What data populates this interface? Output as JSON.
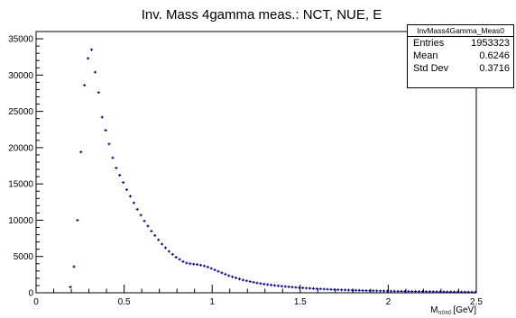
{
  "chart_data": {
    "type": "scatter",
    "title": "Inv. Mass 4gamma meas.: NCT, NUE, E",
    "xlabel": "M",
    "xlabel_sub": "π0π0",
    "xlabel_unit": "[GeV]",
    "ylabel": "",
    "xlim": [
      0,
      2.5
    ],
    "ylim": [
      0,
      36000
    ],
    "x_ticks": [
      0,
      0.5,
      1,
      1.5,
      2,
      2.5
    ],
    "x_tick_labels": [
      "0",
      "0.5",
      "1",
      "1.5",
      "2",
      "2.5"
    ],
    "y_ticks": [
      0,
      5000,
      10000,
      15000,
      20000,
      25000,
      30000,
      35000
    ],
    "y_tick_labels": [
      "0",
      "5000",
      "10000",
      "15000",
      "20000",
      "25000",
      "30000",
      "35000"
    ],
    "grid": false,
    "marker_color": "#00008b",
    "series": [
      {
        "x": [
          0.195,
          0.215,
          0.235,
          0.255,
          0.275,
          0.295,
          0.315,
          0.335,
          0.355,
          0.375,
          0.395,
          0.415,
          0.435,
          0.455,
          0.475,
          0.495,
          0.515,
          0.535,
          0.555,
          0.575,
          0.595,
          0.615,
          0.635,
          0.655,
          0.675,
          0.695,
          0.715,
          0.735,
          0.755,
          0.775,
          0.795,
          0.815,
          0.835,
          0.855,
          0.875,
          0.895,
          0.915,
          0.935,
          0.955,
          0.975,
          0.995,
          1.015,
          1.035,
          1.055,
          1.075,
          1.095,
          1.115,
          1.135,
          1.155,
          1.175,
          1.195,
          1.215,
          1.235,
          1.255,
          1.275,
          1.295,
          1.315,
          1.335,
          1.355,
          1.375,
          1.395,
          1.415,
          1.435,
          1.455,
          1.475,
          1.495,
          1.515,
          1.535,
          1.555,
          1.575,
          1.595,
          1.615,
          1.635,
          1.655,
          1.675,
          1.695,
          1.715,
          1.735,
          1.755,
          1.775,
          1.795,
          1.815,
          1.835,
          1.855,
          1.875,
          1.895,
          1.915,
          1.935,
          1.955,
          1.975,
          1.995,
          2.015,
          2.035,
          2.055,
          2.075,
          2.095,
          2.115,
          2.135,
          2.155,
          2.175,
          2.195,
          2.215,
          2.235,
          2.255,
          2.275,
          2.295,
          2.315,
          2.335,
          2.355,
          2.375,
          2.395,
          2.415,
          2.435,
          2.455,
          2.475,
          2.495
        ],
        "y": [
          800,
          3600,
          10000,
          19400,
          28600,
          32300,
          33500,
          30400,
          27600,
          24200,
          22400,
          20500,
          18600,
          17200,
          16200,
          15200,
          14200,
          13300,
          12400,
          11500,
          10700,
          9900,
          9200,
          8500,
          7900,
          7300,
          6700,
          6200,
          5700,
          5300,
          4900,
          4600,
          4300,
          4100,
          4000,
          3950,
          3900,
          3800,
          3700,
          3550,
          3350,
          3150,
          2950,
          2750,
          2550,
          2350,
          2200,
          2050,
          1900,
          1750,
          1650,
          1550,
          1450,
          1350,
          1270,
          1200,
          1130,
          1070,
          1010,
          960,
          910,
          860,
          820,
          780,
          740,
          700,
          670,
          640,
          610,
          580,
          555,
          530,
          505,
          480,
          460,
          440,
          420,
          400,
          385,
          370,
          355,
          340,
          325,
          310,
          300,
          290,
          280,
          270,
          260,
          250,
          240,
          230,
          220,
          210,
          200,
          195,
          190,
          185,
          180,
          175,
          170,
          165,
          160,
          155,
          150,
          145,
          140,
          135,
          130,
          125,
          120,
          115,
          110,
          105,
          100,
          95
        ]
      }
    ]
  },
  "stats": {
    "name": "InvMass4Gamma_Meas0",
    "rows": [
      {
        "label": "Entries",
        "value": "1953323"
      },
      {
        "label": "Mean",
        "value": "0.6246"
      },
      {
        "label": "Std Dev",
        "value": "0.3716"
      }
    ]
  }
}
